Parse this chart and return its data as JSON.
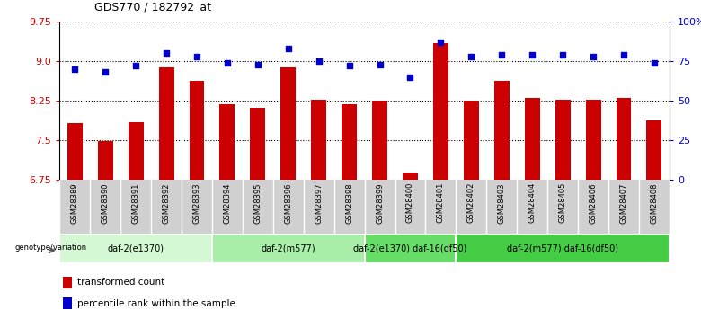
{
  "title": "GDS770 / 182792_at",
  "categories": [
    "GSM28389",
    "GSM28390",
    "GSM28391",
    "GSM28392",
    "GSM28393",
    "GSM28394",
    "GSM28395",
    "GSM28396",
    "GSM28397",
    "GSM28398",
    "GSM28399",
    "GSM28400",
    "GSM28401",
    "GSM28402",
    "GSM28403",
    "GSM28404",
    "GSM28405",
    "GSM28406",
    "GSM28407",
    "GSM28408"
  ],
  "bar_values": [
    7.82,
    7.48,
    7.84,
    8.88,
    8.62,
    8.18,
    8.12,
    8.88,
    8.27,
    8.19,
    8.25,
    6.88,
    9.35,
    8.25,
    8.62,
    8.3,
    8.27,
    8.27,
    8.3,
    7.88
  ],
  "dot_values": [
    70,
    68,
    72,
    80,
    78,
    74,
    73,
    83,
    75,
    72,
    73,
    65,
    87,
    78,
    79,
    79,
    79,
    78,
    79,
    74
  ],
  "bar_color": "#cc0000",
  "dot_color": "#0000cc",
  "ylim_left": [
    6.75,
    9.75
  ],
  "ylim_right": [
    0,
    100
  ],
  "yticks_left": [
    6.75,
    7.5,
    8.25,
    9.0,
    9.75
  ],
  "yticks_right": [
    0,
    25,
    50,
    75,
    100
  ],
  "ytick_labels_right": [
    "0",
    "25",
    "50",
    "75",
    "100%"
  ],
  "groups": [
    {
      "label": "daf-2(e1370)",
      "start": 0,
      "end": 5,
      "color": "#d4f7d4"
    },
    {
      "label": "daf-2(m577)",
      "start": 5,
      "end": 10,
      "color": "#a8eda8"
    },
    {
      "label": "daf-2(e1370) daf-16(df50)",
      "start": 10,
      "end": 13,
      "color": "#66dd66"
    },
    {
      "label": "daf-2(m577) daf-16(df50)",
      "start": 13,
      "end": 20,
      "color": "#44cc44"
    }
  ],
  "genotype_label": "genotype/variation",
  "legend_bar": "transformed count",
  "legend_dot": "percentile rank within the sample",
  "background_color": "#ffffff",
  "xtick_bg": "#d0d0d0"
}
